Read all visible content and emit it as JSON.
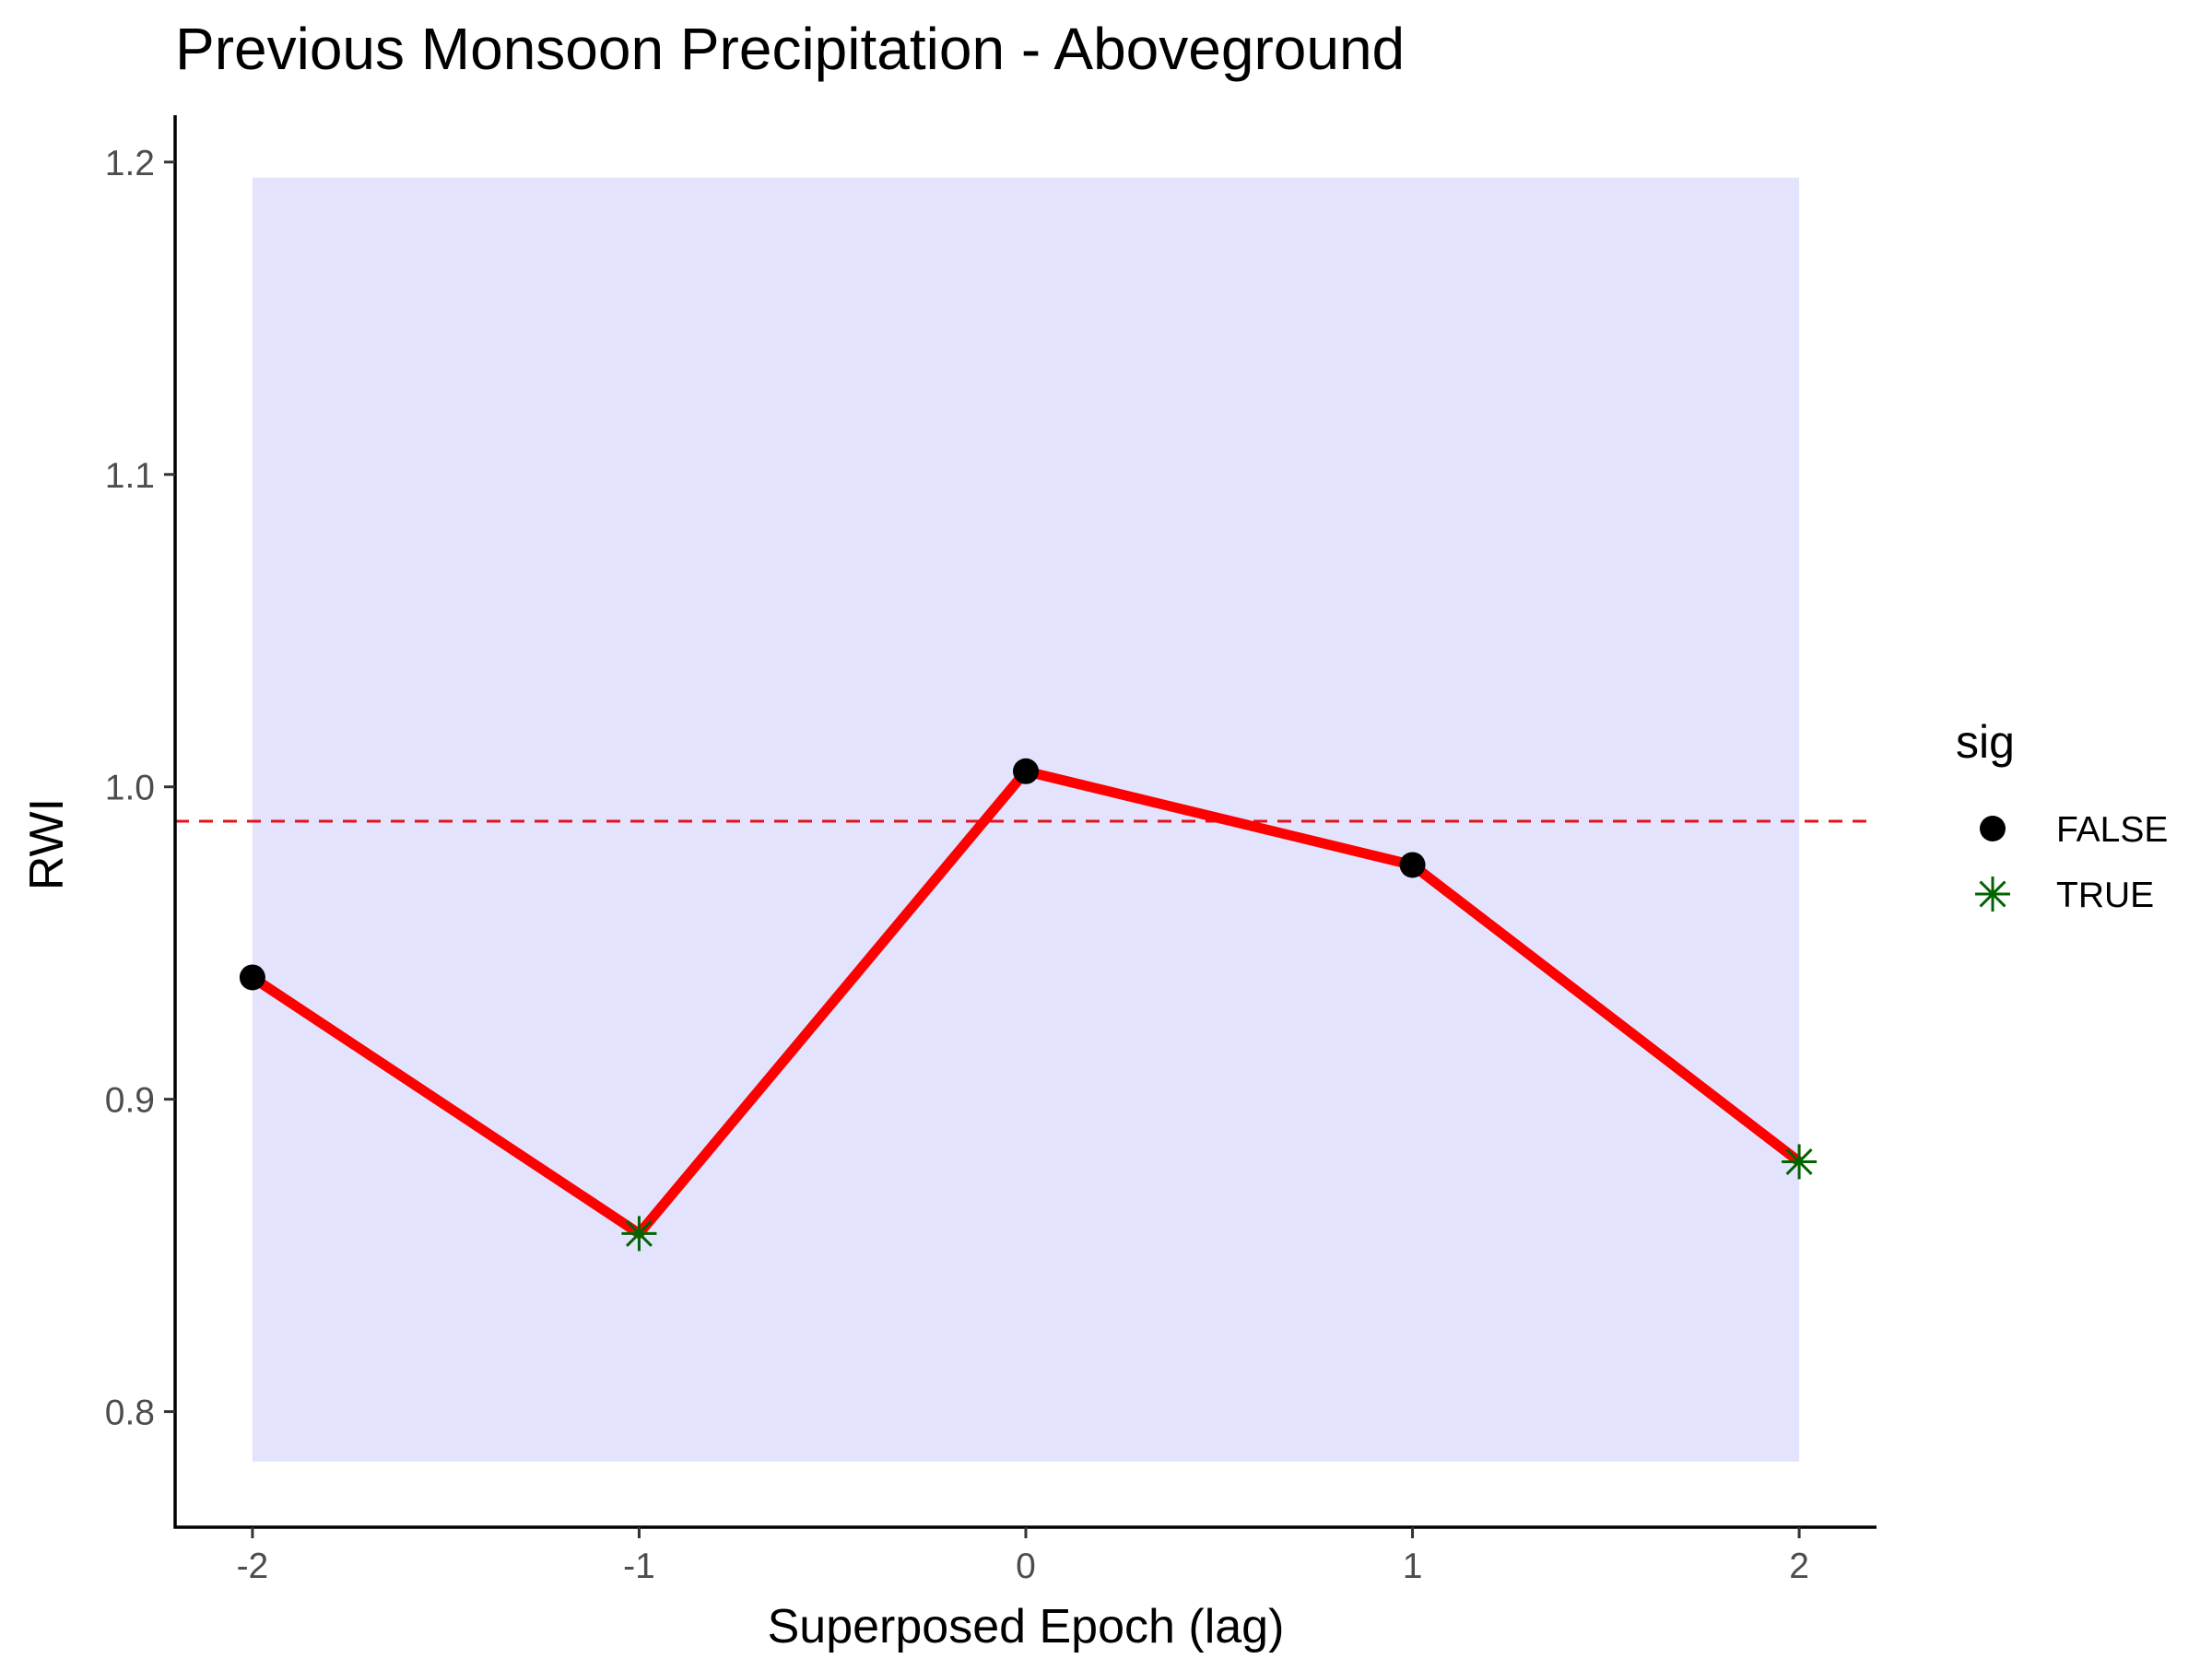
{
  "chart_data": {
    "type": "line",
    "title": "Previous Monsoon Precipitation - Aboveground",
    "xlabel": "Superposed Epoch (lag)",
    "ylabel": "RWI",
    "x": [
      -2,
      -1,
      0,
      1,
      2
    ],
    "x_tick_labels": [
      "-2",
      "-1",
      "0",
      "1",
      "2"
    ],
    "y_ticks": [
      0.8,
      0.9,
      1.0,
      1.1,
      1.2
    ],
    "y_tick_labels": [
      "0.8",
      "0.9",
      "1.0",
      "1.1",
      "1.2"
    ],
    "xlim": [
      -2.2,
      2.2
    ],
    "ylim": [
      0.763,
      1.215
    ],
    "series": [
      {
        "values": [
          0.939,
          0.857,
          1.005,
          0.975,
          0.88
        ],
        "sig": [
          false,
          true,
          false,
          false,
          true
        ],
        "line_color": "#ff0000"
      }
    ],
    "reference_line": {
      "y": 0.989,
      "style": "dashed",
      "color": "#e8101a"
    },
    "confidence_band": {
      "x_range": [
        -2,
        2
      ],
      "y_range": [
        0.784,
        1.195
      ],
      "color": "#e3e3fd"
    },
    "legend": {
      "title": "sig",
      "placement": "right",
      "entries": [
        {
          "label": "FALSE",
          "marker": "filled-circle",
          "color": "#000000"
        },
        {
          "label": "TRUE",
          "marker": "asterisk",
          "color": "#006400"
        }
      ]
    },
    "grid": false
  }
}
